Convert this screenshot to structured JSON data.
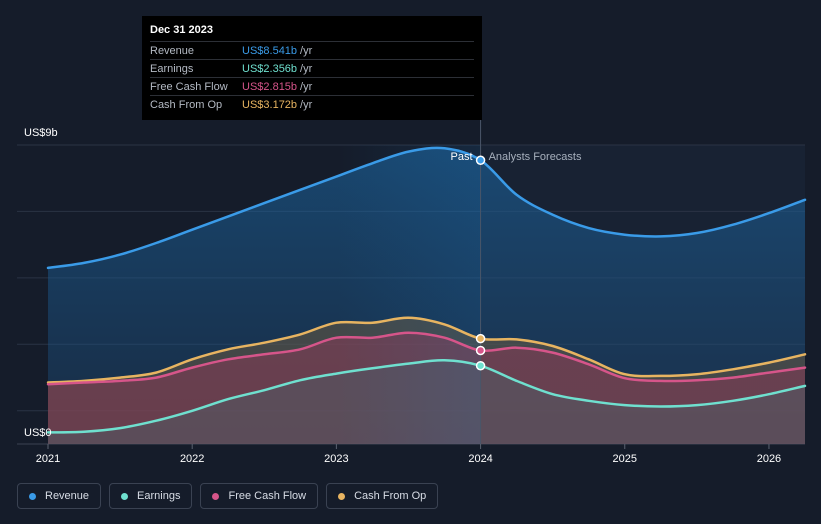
{
  "tooltip": {
    "date": "Dec 31 2023",
    "unit": "/yr",
    "rows": [
      {
        "label": "Revenue",
        "value": "US$8.541b",
        "color": "#3a9be8"
      },
      {
        "label": "Earnings",
        "value": "US$2.356b",
        "color": "#6fe0cf"
      },
      {
        "label": "Free Cash Flow",
        "value": "US$2.815b",
        "color": "#d6558a"
      },
      {
        "label": "Cash From Op",
        "value": "US$3.172b",
        "color": "#e7b461"
      }
    ]
  },
  "legend": [
    {
      "label": "Revenue",
      "color": "#3a9be8"
    },
    {
      "label": "Earnings",
      "color": "#6fe0cf"
    },
    {
      "label": "Free Cash Flow",
      "color": "#d6558a"
    },
    {
      "label": "Cash From Op",
      "color": "#e7b461"
    }
  ],
  "chart_data": {
    "type": "area",
    "y_top_label": "US$9b",
    "y_bottom_label": "US$0",
    "ylim": [
      0,
      9
    ],
    "xlim": [
      2021.0,
      2026.25
    ],
    "x_ticks": [
      2021,
      2022,
      2023,
      2024,
      2025,
      2026
    ],
    "x_tick_labels": [
      "2021",
      "2022",
      "2023",
      "2024",
      "2025",
      "2026"
    ],
    "divider_x": 2024.0,
    "past_label": "Past",
    "forecast_label": "Analysts Forecasts",
    "series": [
      {
        "name": "Revenue",
        "color": "#3a9be8",
        "x": [
          2021.0,
          2021.25,
          2021.5,
          2021.75,
          2022.0,
          2022.25,
          2022.5,
          2022.75,
          2023.0,
          2023.25,
          2023.5,
          2023.75,
          2024.0,
          2024.25,
          2024.5,
          2024.75,
          2025.0,
          2025.25,
          2025.5,
          2025.75,
          2026.0,
          2026.25
        ],
        "values": [
          5.3,
          5.45,
          5.7,
          6.05,
          6.45,
          6.85,
          7.25,
          7.65,
          8.05,
          8.45,
          8.8,
          8.9,
          8.541,
          7.5,
          6.9,
          6.5,
          6.3,
          6.25,
          6.35,
          6.6,
          6.95,
          7.35
        ]
      },
      {
        "name": "Earnings",
        "color": "#6fe0cf",
        "x": [
          2021.0,
          2021.25,
          2021.5,
          2021.75,
          2022.0,
          2022.25,
          2022.5,
          2022.75,
          2023.0,
          2023.25,
          2023.5,
          2023.75,
          2024.0,
          2024.25,
          2024.5,
          2024.75,
          2025.0,
          2025.25,
          2025.5,
          2025.75,
          2026.0,
          2026.25
        ],
        "values": [
          0.35,
          0.37,
          0.48,
          0.7,
          1.0,
          1.35,
          1.62,
          1.92,
          2.12,
          2.28,
          2.42,
          2.52,
          2.356,
          1.9,
          1.5,
          1.3,
          1.17,
          1.13,
          1.17,
          1.3,
          1.5,
          1.75
        ]
      },
      {
        "name": "Free Cash Flow",
        "color": "#d6558a",
        "x": [
          2021.0,
          2021.25,
          2021.5,
          2021.75,
          2022.0,
          2022.25,
          2022.5,
          2022.75,
          2023.0,
          2023.25,
          2023.5,
          2023.75,
          2024.0,
          2024.25,
          2024.5,
          2024.75,
          2025.0,
          2025.25,
          2025.5,
          2025.75,
          2026.0,
          2026.25
        ],
        "values": [
          1.8,
          1.85,
          1.9,
          2.0,
          2.3,
          2.55,
          2.7,
          2.85,
          3.2,
          3.2,
          3.35,
          3.2,
          2.815,
          2.9,
          2.75,
          2.4,
          1.98,
          1.9,
          1.92,
          2.0,
          2.15,
          2.3
        ]
      },
      {
        "name": "Cash From Op",
        "color": "#e7b461",
        "x": [
          2021.0,
          2021.25,
          2021.5,
          2021.75,
          2022.0,
          2022.25,
          2022.5,
          2022.75,
          2023.0,
          2023.25,
          2023.5,
          2023.75,
          2024.0,
          2024.25,
          2024.5,
          2024.75,
          2025.0,
          2025.25,
          2025.5,
          2025.75,
          2026.0,
          2026.25
        ],
        "values": [
          1.85,
          1.9,
          2.0,
          2.15,
          2.55,
          2.85,
          3.05,
          3.3,
          3.65,
          3.65,
          3.8,
          3.6,
          3.172,
          3.15,
          2.95,
          2.55,
          2.1,
          2.05,
          2.1,
          2.25,
          2.45,
          2.7
        ]
      }
    ],
    "tooltip_points_x": 2024.0
  }
}
